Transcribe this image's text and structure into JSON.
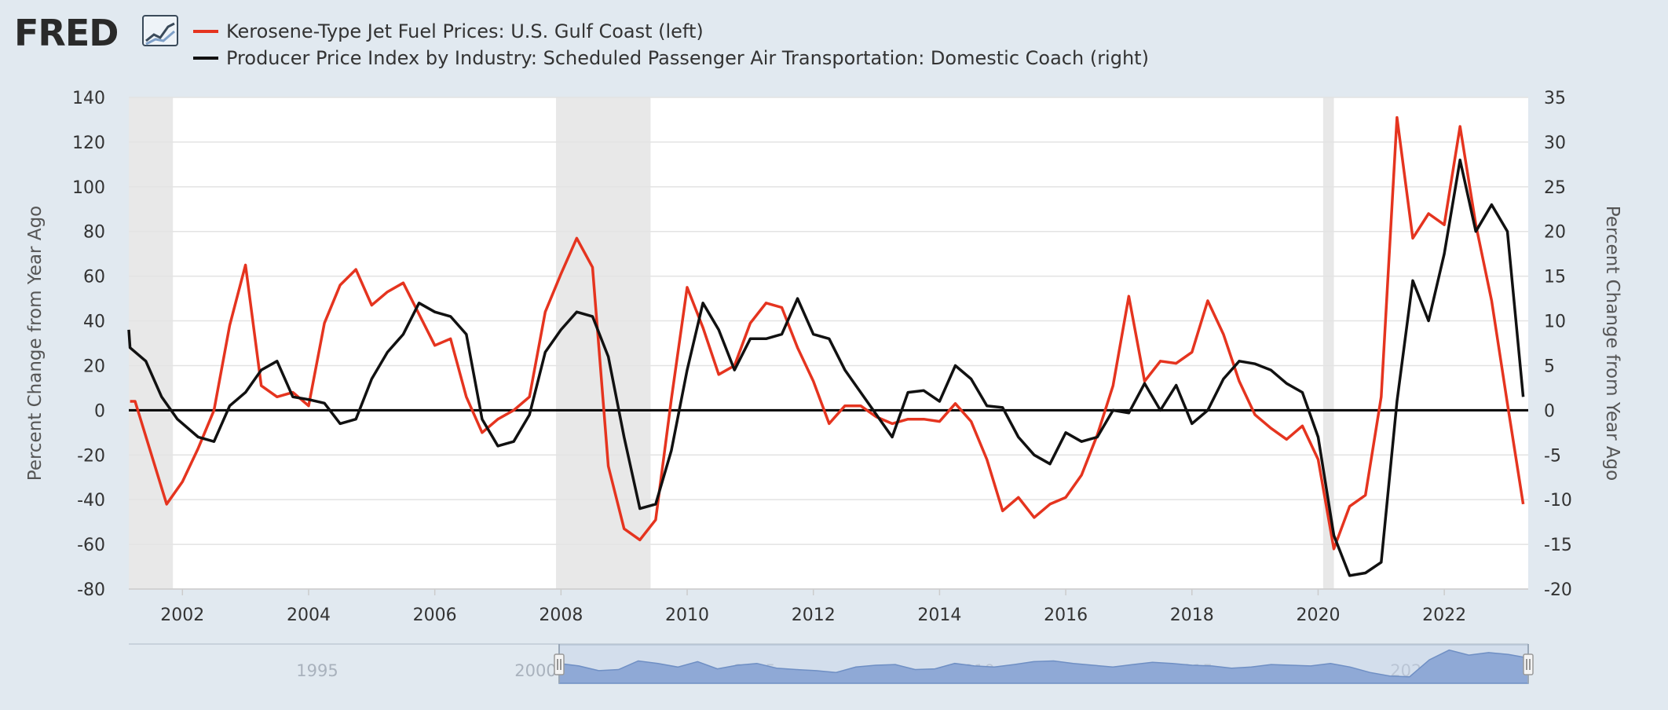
{
  "logo": {
    "text": "FRED"
  },
  "legend": [
    {
      "label": "Kerosene-Type Jet Fuel Prices: U.S. Gulf Coast (left)",
      "color": "#e5341f"
    },
    {
      "label": "Producer Price Index by Industry: Scheduled Passenger Air Transportation: Domestic Coach (right)",
      "color": "#111111"
    }
  ],
  "colors": {
    "background": "#e1e9f0",
    "plot_background": "#ffffff",
    "recession_shade": "#e8e8e8",
    "navigator_fill": "#8fa9d6"
  },
  "chart_data": {
    "type": "line",
    "left_axis": {
      "label": "Percent Change from Year Ago",
      "range": [
        -80,
        140
      ],
      "ticks": [
        "140",
        "120",
        "100",
        "80",
        "60",
        "40",
        "20",
        "0",
        "-20",
        "-40",
        "-60",
        "-80"
      ]
    },
    "right_axis": {
      "label": "Percent Change from Year Ago",
      "range": [
        -20,
        35
      ],
      "ticks": [
        "35",
        "30",
        "25",
        "20",
        "15",
        "10",
        "5",
        "0",
        "-5",
        "-10",
        "-15",
        "-20"
      ]
    },
    "x_axis": {
      "range": [
        2001.15,
        2023.33
      ],
      "ticks": [
        "2002",
        "2004",
        "2006",
        "2008",
        "2010",
        "2012",
        "2014",
        "2016",
        "2018",
        "2020",
        "2022"
      ]
    },
    "zero_line": 0,
    "recessions": [
      [
        2001.15,
        2001.85
      ],
      [
        2007.92,
        2009.42
      ],
      [
        2020.08,
        2020.25
      ]
    ],
    "series": [
      {
        "name": "Kerosene-Type Jet Fuel Prices: U.S. Gulf Coast (left)",
        "axis": "left",
        "color": "#e5341f",
        "x": [
          2001.17,
          2001.25,
          2001.75,
          2002.0,
          2002.25,
          2002.5,
          2002.75,
          2003.0,
          2003.25,
          2003.5,
          2003.75,
          2004.0,
          2004.25,
          2004.5,
          2004.75,
          2005.0,
          2005.25,
          2005.5,
          2005.75,
          2006.0,
          2006.25,
          2006.5,
          2006.75,
          2007.0,
          2007.25,
          2007.5,
          2007.75,
          2008.0,
          2008.25,
          2008.5,
          2008.75,
          2009.0,
          2009.25,
          2009.5,
          2009.75,
          2010.0,
          2010.25,
          2010.5,
          2010.75,
          2011.0,
          2011.25,
          2011.5,
          2011.75,
          2012.0,
          2012.25,
          2012.5,
          2012.75,
          2013.0,
          2013.25,
          2013.5,
          2013.75,
          2014.0,
          2014.25,
          2014.5,
          2014.75,
          2015.0,
          2015.25,
          2015.5,
          2015.75,
          2016.0,
          2016.25,
          2016.5,
          2016.75,
          2017.0,
          2017.25,
          2017.5,
          2017.75,
          2018.0,
          2018.25,
          2018.5,
          2018.75,
          2019.0,
          2019.25,
          2019.5,
          2019.75,
          2020.0,
          2020.25,
          2020.5,
          2020.75,
          2021.0,
          2021.25,
          2021.5,
          2021.75,
          2022.0,
          2022.25,
          2022.5,
          2022.75,
          2023.0,
          2023.25
        ],
        "values": [
          4,
          4,
          -42,
          -32,
          -17,
          0,
          38,
          65,
          11,
          6,
          8,
          2,
          39,
          56,
          63,
          47,
          53,
          57,
          43,
          29,
          32,
          6,
          -10,
          -4,
          0,
          6,
          44,
          61,
          77,
          64,
          -25,
          -53,
          -58,
          -49,
          5,
          55,
          37,
          16,
          20,
          39,
          48,
          46,
          28,
          13,
          -6,
          2,
          2,
          -3,
          -6,
          -4,
          -4,
          -5,
          3,
          -5,
          -22,
          -45,
          -39,
          -48,
          -42,
          -39,
          -29,
          -11,
          11,
          51,
          13,
          22,
          21,
          26,
          49,
          34,
          13,
          -2,
          -8,
          -13,
          -7,
          -22,
          -62,
          -43,
          -38,
          6,
          131,
          77,
          88,
          83,
          127,
          83,
          49,
          3,
          -42
        ]
      },
      {
        "name": "Producer Price Index by Industry: Scheduled Passenger Air Transportation: Domestic Coach (right)",
        "axis": "right",
        "color": "#111111",
        "x": [
          2001.0,
          2001.17,
          2001.42,
          2001.67,
          2001.92,
          2002.25,
          2002.5,
          2002.75,
          2003.0,
          2003.25,
          2003.5,
          2003.75,
          2004.0,
          2004.25,
          2004.5,
          2004.75,
          2005.0,
          2005.25,
          2005.5,
          2005.75,
          2006.0,
          2006.25,
          2006.5,
          2006.75,
          2007.0,
          2007.25,
          2007.5,
          2007.75,
          2008.0,
          2008.25,
          2008.5,
          2008.75,
          2009.0,
          2009.25,
          2009.5,
          2009.75,
          2010.0,
          2010.25,
          2010.5,
          2010.75,
          2011.0,
          2011.25,
          2011.5,
          2011.75,
          2012.0,
          2012.25,
          2012.5,
          2012.75,
          2013.0,
          2013.25,
          2013.5,
          2013.75,
          2014.0,
          2014.25,
          2014.5,
          2014.75,
          2015.0,
          2015.25,
          2015.5,
          2015.75,
          2016.0,
          2016.25,
          2016.5,
          2016.75,
          2017.0,
          2017.25,
          2017.5,
          2017.75,
          2018.0,
          2018.25,
          2018.5,
          2018.75,
          2019.0,
          2019.25,
          2019.5,
          2019.75,
          2020.0,
          2020.25,
          2020.5,
          2020.75,
          2021.0,
          2021.25,
          2021.5,
          2021.75,
          2022.0,
          2022.25,
          2022.5,
          2022.75,
          2023.0,
          2023.25
        ],
        "values": [
          9,
          7,
          5.5,
          1.5,
          -1,
          -3,
          -3.5,
          0.5,
          2,
          4.5,
          5.5,
          1.5,
          1.2,
          0.8,
          -1.5,
          -1,
          3.5,
          6.5,
          8.5,
          12,
          11,
          10.5,
          8.5,
          -1,
          -4,
          -3.5,
          -0.5,
          6.5,
          9,
          11,
          10.5,
          6,
          -3,
          -11,
          -10.5,
          -4.5,
          4.5,
          12,
          9,
          4.5,
          8,
          8,
          8.5,
          12.5,
          8.5,
          8,
          4.5,
          2,
          -0.5,
          -3,
          2,
          2.2,
          1,
          5,
          3.5,
          0.5,
          0.3,
          -3,
          -5,
          -6,
          -2.5,
          -3.5,
          -3,
          0,
          -0.3,
          3,
          0,
          2.8,
          -1.5,
          0,
          3.5,
          5.5,
          5.2,
          4.5,
          3,
          2,
          -3,
          -14,
          -18.5,
          -18.2,
          -17,
          1,
          14.5,
          10,
          17.5,
          28,
          20,
          23,
          20,
          1.5
        ]
      }
    ]
  },
  "navigator": {
    "labels": [
      "1995",
      "2000",
      "2005",
      "2010",
      "2015",
      "2020"
    ],
    "profile": [
      0.55,
      0.48,
      0.35,
      0.38,
      0.62,
      0.55,
      0.45,
      0.6,
      0.4,
      0.5,
      0.55,
      0.42,
      0.38,
      0.35,
      0.3,
      0.45,
      0.5,
      0.52,
      0.38,
      0.4,
      0.55,
      0.48,
      0.45,
      0.52,
      0.6,
      0.62,
      0.55,
      0.5,
      0.45,
      0.52,
      0.58,
      0.55,
      0.5,
      0.48,
      0.42,
      0.45,
      0.52,
      0.5,
      0.48,
      0.55,
      0.45,
      0.3,
      0.2,
      0.18,
      0.65,
      0.92,
      0.78,
      0.85,
      0.8,
      0.7
    ]
  }
}
